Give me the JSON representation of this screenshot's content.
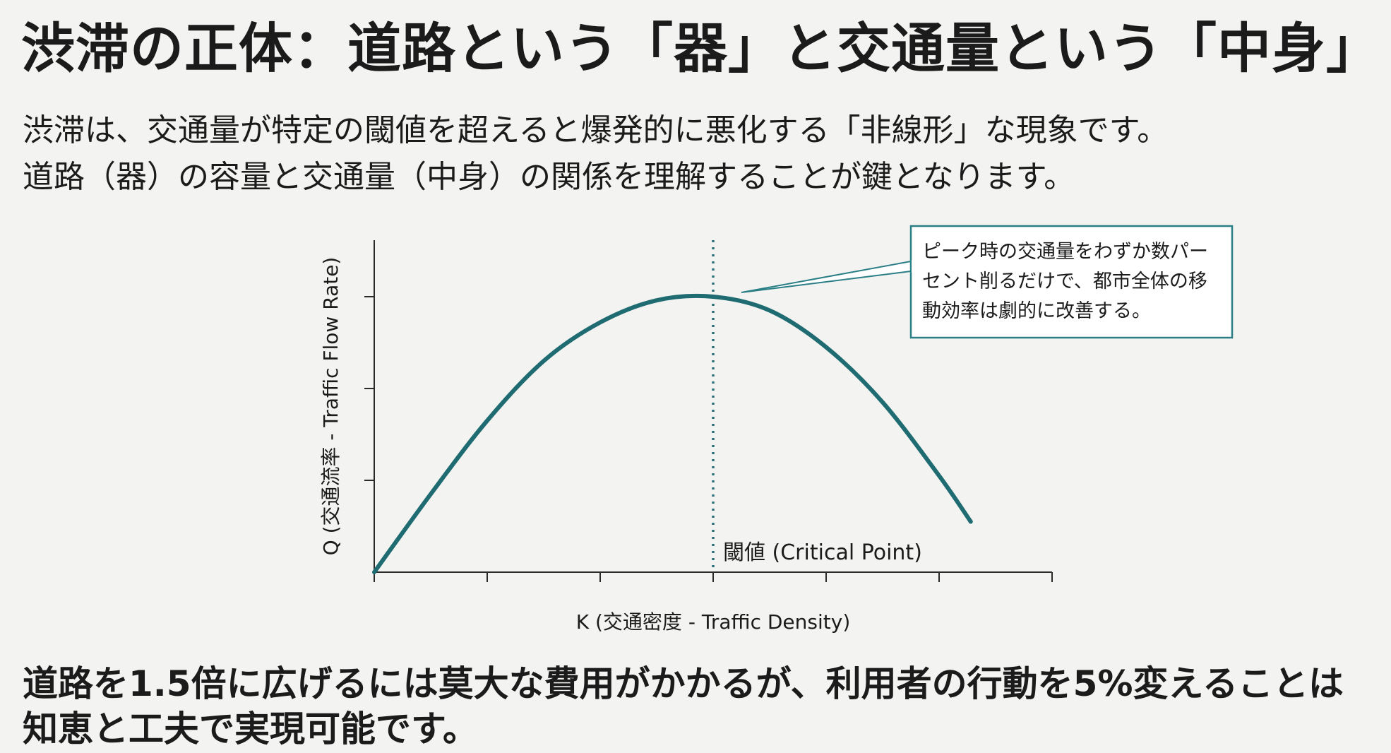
{
  "title": "渋滞の正体：道路という「器」と交通量という「中身」",
  "subtitle": {
    "line1": "渋滞は、交通量が特定の閾値を超えると爆発的に悪化する「非線形」な現象です。",
    "line2": "道路（器）の容量と交通量（中身）の関係を理解することが鍵となります。"
  },
  "chart_data": {
    "type": "line",
    "xlabel": "K (交通密度 - Traffic Density)",
    "ylabel": "Q (交通流率 - Traffic Flow Rate)",
    "xlim": [
      0,
      6
    ],
    "ylim": [
      0,
      3
    ],
    "x_ticks": [
      0,
      1,
      2,
      3,
      4,
      5,
      6
    ],
    "y_ticks": [
      0,
      1,
      2,
      3
    ],
    "grid": false,
    "series": [
      {
        "x": [
          0,
          0.5,
          1,
          1.5,
          2,
          2.5,
          3,
          3.5,
          4,
          4.5,
          5,
          5.28
        ],
        "values": [
          0,
          0.85,
          1.65,
          2.3,
          2.72,
          2.96,
          3.0,
          2.85,
          2.45,
          1.85,
          1.05,
          0.55
        ],
        "color": "#1f6b72"
      }
    ],
    "threshold": {
      "x": 3,
      "label": "閾値 (Critical Point)"
    },
    "annotation": {
      "lines": [
        "ピーク時の交通量をわずか数パー",
        "セント削るだけで、都市全体の移",
        "動効率は劇的に改善する。"
      ]
    }
  },
  "bottom_text": {
    "line1": "道路を1.5倍に広げるには莫大な費用がかかるが、利用者の行動を5%変えることは",
    "line2": "知恵と工夫で実現可能です。"
  }
}
